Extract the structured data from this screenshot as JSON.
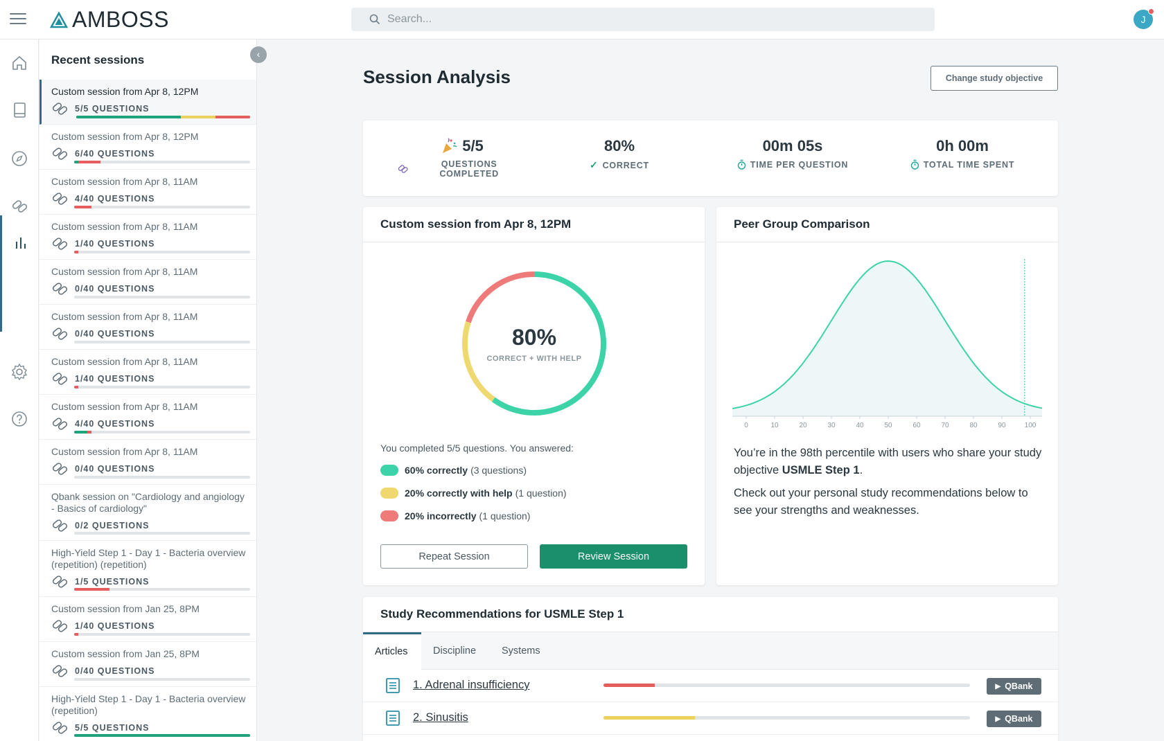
{
  "header": {
    "logo_text": "AMBOSS",
    "search_placeholder": "Search...",
    "avatar_initial": "J"
  },
  "sessions_panel": {
    "title": "Recent sessions",
    "items": [
      {
        "name": "Custom session from Apr 8, 12PM",
        "count": "5/5 QUESTIONS",
        "correct": 0.6,
        "help": 0.2,
        "incorrect": 0.2
      },
      {
        "name": "Custom session from Apr 8, 12PM",
        "count": "6/40 QUESTIONS",
        "correct": 0.025,
        "help": 0.0,
        "incorrect": 0.125
      },
      {
        "name": "Custom session from Apr 8, 11AM",
        "count": "4/40 QUESTIONS",
        "correct": 0.0,
        "help": 0.0,
        "incorrect": 0.1
      },
      {
        "name": "Custom session from Apr 8, 11AM",
        "count": "1/40 QUESTIONS",
        "correct": 0.0,
        "help": 0.0,
        "incorrect": 0.025
      },
      {
        "name": "Custom session from Apr 8, 11AM",
        "count": "0/40 QUESTIONS",
        "correct": 0,
        "help": 0,
        "incorrect": 0
      },
      {
        "name": "Custom session from Apr 8, 11AM",
        "count": "0/40 QUESTIONS",
        "correct": 0,
        "help": 0,
        "incorrect": 0
      },
      {
        "name": "Custom session from Apr 8, 11AM",
        "count": "1/40 QUESTIONS",
        "correct": 0.0,
        "help": 0.0,
        "incorrect": 0.025
      },
      {
        "name": "Custom session from Apr 8, 11AM",
        "count": "4/40 QUESTIONS",
        "correct": 0.075,
        "help": 0.0,
        "incorrect": 0.025
      },
      {
        "name": "Custom session from Apr 8, 11AM",
        "count": "0/40 QUESTIONS",
        "correct": 0,
        "help": 0,
        "incorrect": 0
      },
      {
        "name": "Qbank session on \"Cardiology and angiology - Basics of cardiology\"",
        "count": "0/2 QUESTIONS",
        "correct": 0,
        "help": 0,
        "incorrect": 0
      },
      {
        "name": "High-Yield Step 1 - Day 1 - Bacteria overview (repetition) (repetition)",
        "count": "1/5 QUESTIONS",
        "correct": 0.0,
        "help": 0.0,
        "incorrect": 0.2
      },
      {
        "name": "Custom session from Jan 25, 8PM",
        "count": "1/40 QUESTIONS",
        "correct": 0.0,
        "help": 0.0,
        "incorrect": 0.025
      },
      {
        "name": "Custom session from Jan 25, 8PM",
        "count": "0/40 QUESTIONS",
        "correct": 0,
        "help": 0,
        "incorrect": 0
      },
      {
        "name": "High-Yield Step 1 - Day 1 - Bacteria overview (repetition)",
        "count": "5/5 QUESTIONS",
        "correct": 1.0,
        "help": 0.0,
        "incorrect": 0.0
      }
    ]
  },
  "page": {
    "title": "Session Analysis",
    "change_objective_label": "Change study objective"
  },
  "stats": {
    "completed_value": "5/5",
    "completed_label": "QUESTIONS COMPLETED",
    "correct_value": "80%",
    "correct_label": "CORRECT",
    "time_per_question_value": "00m 05s",
    "time_per_question_label": "TIME PER QUESTION",
    "total_time_value": "0h 00m",
    "total_time_label": "TOTAL TIME SPENT"
  },
  "session_card": {
    "title": "Custom session from Apr 8, 12PM",
    "donut_percent": "80%",
    "donut_label": "CORRECT + WITH HELP",
    "donut": {
      "correct": 0.6,
      "help": 0.2,
      "incorrect": 0.2
    },
    "intro": "You completed 5/5 questions. You answered:",
    "legend": [
      {
        "bold": "60% correctly",
        "rest": "(3 questions)",
        "color": "#3dd3a8"
      },
      {
        "bold": "20% correctly with help",
        "rest": "(1 question)",
        "color": "#f0d870"
      },
      {
        "bold": "20% incorrectly",
        "rest": "(1 question)",
        "color": "#ee7a7a"
      }
    ],
    "repeat_label": "Repeat Session",
    "review_label": "Review Session"
  },
  "peer_card": {
    "title": "Peer Group Comparison",
    "chart_data": {
      "type": "area",
      "x_ticks": [
        "0",
        "10",
        "20",
        "30",
        "40",
        "50",
        "60",
        "70",
        "80",
        "90",
        "100"
      ],
      "xlim": [
        0,
        100
      ],
      "user_percentile": 98
    },
    "text1_pre": "You’re in the 98th percentile with users who share your study objective ",
    "text1_bold": "USMLE Step 1",
    "text1_post": ".",
    "text2": "Check out your personal study recommendations below to see your strengths and weaknesses."
  },
  "recommendations": {
    "title": "Study Recommendations for USMLE Step 1",
    "tabs": [
      "Articles",
      "Discipline",
      "Systems"
    ],
    "rows": [
      {
        "label": "1. Adrenal insufficiency",
        "progress": 0.14,
        "color": "#e55e5e",
        "button": "QBank"
      },
      {
        "label": "2. Sinusitis",
        "progress": 0.25,
        "color": "#ecd15c",
        "button": "QBank"
      }
    ]
  },
  "colors": {
    "accent": "#1b8f6b",
    "correct": "#3dd3a8",
    "help": "#f0d870",
    "incorrect": "#ee7a7a"
  }
}
